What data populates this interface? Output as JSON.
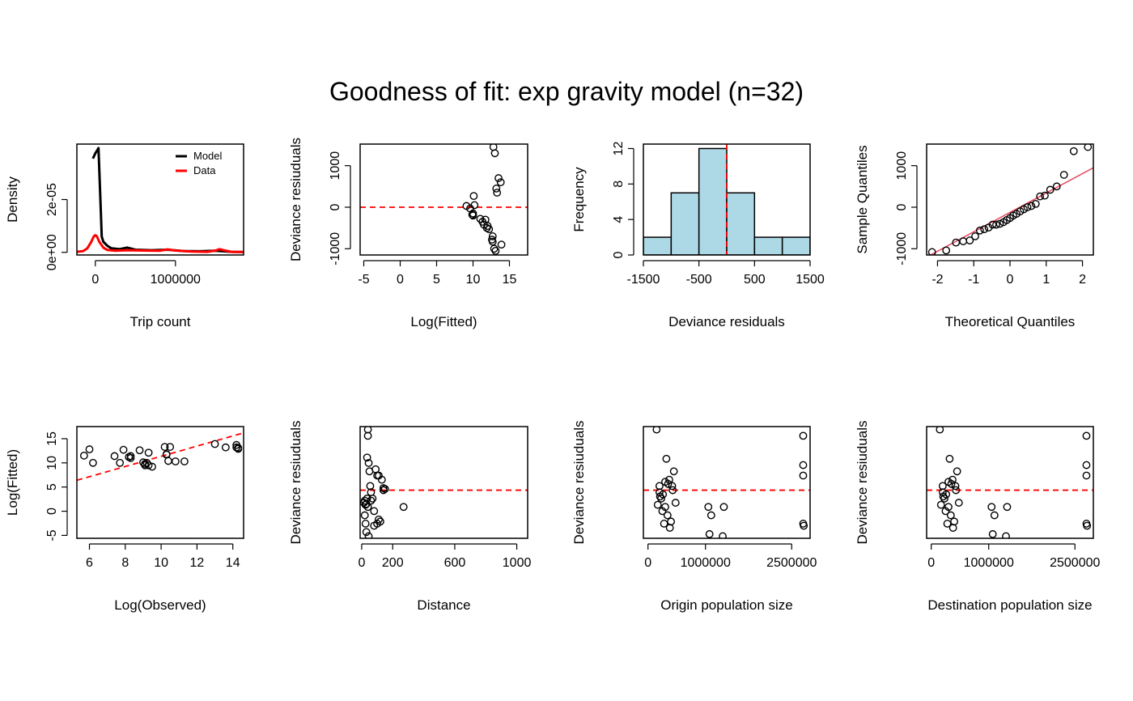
{
  "title": "Goodness of fit: exp gravity model (n=32)",
  "colors": {
    "red": "#ff0000",
    "hist_fill": "#add8e6",
    "qq_line": "#e8475a",
    "black": "#000000"
  },
  "chart_data": [
    {
      "id": "density",
      "type": "line",
      "xlabel": "Trip count",
      "ylabel": "Density",
      "xlim": [
        -230000,
        1850000
      ],
      "ylim": [
        -1e-06,
        4.1e-05
      ],
      "xticks": [
        0,
        1000000
      ],
      "xtick_labels": [
        "0",
        "1000000"
      ],
      "yticks": [
        0,
        2e-05
      ],
      "ytick_labels": [
        "0e+00",
        "2e-05"
      ],
      "legend": {
        "position": "top-right",
        "entries": [
          "Model",
          "Data"
        ]
      },
      "series": [
        {
          "name": "Model",
          "color": "#000000",
          "x": [
            -30000,
            0,
            20000,
            40000,
            60000,
            80000,
            100000,
            150000,
            200000,
            300000,
            400000,
            500000,
            700000,
            900000,
            1100000,
            1300000,
            1500000,
            1700000,
            1850000
          ],
          "y": [
            3.55e-05,
            3.75e-05,
            3.85e-05,
            3.95e-05,
            2.3e-05,
            6e-06,
            4e-06,
            2.5e-06,
            1.5e-06,
            1.2e-06,
            1.8e-06,
            1e-06,
            8e-07,
            1e-06,
            5e-07,
            4e-07,
            6e-07,
            2e-07,
            1e-07
          ]
        },
        {
          "name": "Data",
          "color": "#ff0000",
          "x": [
            -230000,
            -150000,
            -100000,
            -50000,
            -20000,
            0,
            20000,
            50000,
            100000,
            150000,
            250000,
            400000,
            600000,
            800000,
            900000,
            1000000,
            1200000,
            1400000,
            1500000,
            1550000,
            1600000,
            1700000,
            1850000
          ],
          "y": [
            2e-07,
            5e-07,
            1.5e-06,
            4e-06,
            6e-06,
            6.5e-06,
            6e-06,
            4e-06,
            1.8e-06,
            9e-07,
            6e-07,
            8e-07,
            7e-07,
            6e-07,
            1.1e-06,
            7e-07,
            3e-07,
            2e-07,
            7e-07,
            1.2e-06,
            8e-07,
            2e-07,
            1e-07
          ]
        }
      ]
    },
    {
      "id": "resid_fitted",
      "type": "scatter",
      "xlabel": "Log(Fitted)",
      "ylabel": "Deviance resiuduals",
      "xlim": [
        -5.5,
        17.5
      ],
      "ylim": [
        -1150,
        1520
      ],
      "xticks": [
        -5,
        0,
        5,
        10,
        15
      ],
      "xtick_labels": [
        "-5",
        "0",
        "5",
        "10",
        "15"
      ],
      "yticks": [
        -1000,
        0,
        1000
      ],
      "ytick_labels": [
        "-1000",
        "0",
        "1000"
      ],
      "hline": 0,
      "x": [
        9.1,
        9.6,
        9.9,
        10.0,
        10.1,
        10.2,
        11.0,
        11.3,
        11.5,
        11.7,
        11.9,
        12.0,
        12.2,
        12.6,
        12.7,
        12.8,
        13.0,
        13.2,
        13.3,
        13.5,
        13.8,
        13.9,
        12.7,
        12.9,
        13.1,
        10.0
      ],
      "y": [
        30,
        -30,
        -180,
        -150,
        270,
        50,
        -280,
        -350,
        -420,
        -300,
        -500,
        -450,
        -530,
        -780,
        -830,
        1450,
        1300,
        450,
        350,
        700,
        600,
        -900,
        -700,
        -1000,
        -1050,
        -200
      ]
    },
    {
      "id": "hist",
      "type": "bar",
      "xlabel": "Deviance residuals",
      "ylabel": "Frequency",
      "xlim": [
        -1500,
        1500
      ],
      "ylim": [
        0,
        12.5
      ],
      "xticks": [
        -1500,
        -500,
        500,
        1500
      ],
      "xtick_labels": [
        "-1500",
        "-500",
        "500",
        "1500"
      ],
      "yticks": [
        0,
        4,
        8,
        12
      ],
      "ytick_labels": [
        "0",
        "4",
        "8",
        "12"
      ],
      "vline": 0,
      "bin_edges": [
        -1500,
        -1000,
        -500,
        0,
        500,
        1000,
        1500
      ],
      "counts": [
        2,
        7,
        12,
        7,
        2,
        2
      ]
    },
    {
      "id": "qq",
      "type": "scatter",
      "xlabel": "Theoretical Quantiles",
      "ylabel": "Sample Quantiles",
      "xlim": [
        -2.3,
        2.3
      ],
      "ylim": [
        -1150,
        1520
      ],
      "xticks": [
        -2,
        -1,
        0,
        1,
        2
      ],
      "xtick_labels": [
        "-2",
        "-1",
        "0",
        "1",
        "2"
      ],
      "yticks": [
        -1000,
        0,
        1000
      ],
      "ytick_labels": [
        "-1000",
        "0",
        "1000"
      ],
      "qq_line": [
        [
          -2.3,
          -1200
        ],
        [
          2.3,
          950
        ]
      ],
      "x": [
        -2.15,
        -1.76,
        -1.49,
        -1.29,
        -1.11,
        -0.96,
        -0.83,
        -0.71,
        -0.59,
        -0.48,
        -0.38,
        -0.28,
        -0.18,
        -0.09,
        0.0,
        0.09,
        0.18,
        0.28,
        0.38,
        0.48,
        0.59,
        0.71,
        0.83,
        0.96,
        1.11,
        1.29,
        1.49,
        1.76,
        2.15
      ],
      "y": [
        -1080,
        -1040,
        -850,
        -820,
        -800,
        -700,
        -560,
        -530,
        -490,
        -420,
        -420,
        -400,
        -360,
        -310,
        -260,
        -200,
        -160,
        -100,
        -50,
        0,
        30,
        80,
        260,
        280,
        420,
        500,
        780,
        1350,
        1450
      ]
    },
    {
      "id": "fitted_observed",
      "type": "scatter",
      "xlabel": "Log(Observed)",
      "ylabel": "Log(Fitted)",
      "xlim": [
        5.3,
        14.6
      ],
      "ylim": [
        -5.6,
        17.5
      ],
      "xticks": [
        6,
        8,
        10,
        12,
        14
      ],
      "xtick_labels": [
        "6",
        "8",
        "10",
        "12",
        "14"
      ],
      "yticks": [
        -5,
        0,
        5,
        10,
        15
      ],
      "ytick_labels": [
        "-5",
        "0",
        "5",
        "10",
        "15"
      ],
      "abline": [
        [
          5.3,
          6.4
        ],
        [
          14.6,
          16.2
        ]
      ],
      "x": [
        5.7,
        6.0,
        6.2,
        7.4,
        7.7,
        7.9,
        8.2,
        8.3,
        8.8,
        9.0,
        9.1,
        9.2,
        9.3,
        9.3,
        9.5,
        10.2,
        10.3,
        10.4,
        10.5,
        10.8,
        11.3,
        13.0,
        13.6,
        14.2,
        14.3,
        14.3,
        14.2,
        9.1,
        8.3,
        10.3
      ],
      "y": [
        11.5,
        12.8,
        10.0,
        11.4,
        10.0,
        12.7,
        11.2,
        11.4,
        12.6,
        10.1,
        9.5,
        10.0,
        9.5,
        12.1,
        9.2,
        13.3,
        11.8,
        10.4,
        13.3,
        10.3,
        10.3,
        13.9,
        13.2,
        13.7,
        13.1,
        12.9,
        13.2,
        9.8,
        11.0,
        11.7
      ]
    },
    {
      "id": "resid_distance",
      "type": "scatter",
      "xlabel": "Distance",
      "ylabel": "Deviance resiuduals",
      "xlim": [
        -10,
        1070
      ],
      "ylim": [
        -1150,
        1520
      ],
      "xticks": [
        0,
        200,
        600,
        1000
      ],
      "xtick_labels": [
        "0",
        "200",
        "600",
        "1000"
      ],
      "hline": 0,
      "x": [
        15,
        20,
        25,
        30,
        30,
        35,
        40,
        40,
        45,
        50,
        55,
        60,
        70,
        80,
        90,
        100,
        110,
        120,
        130,
        140,
        150,
        270,
        35,
        40,
        45,
        60,
        80,
        100,
        110,
        140,
        25,
        20
      ],
      "y": [
        -300,
        -600,
        -800,
        -1000,
        -330,
        -200,
        1450,
        1300,
        650,
        450,
        100,
        -50,
        -200,
        -850,
        500,
        350,
        -700,
        -750,
        250,
        50,
        30,
        -400,
        780,
        -400,
        -1100,
        -250,
        -500,
        -800,
        350,
        0,
        -350,
        -250
      ]
    },
    {
      "id": "resid_origin",
      "type": "scatter",
      "xlabel": "Origin population size",
      "ylabel": "Deviance resiuduals",
      "xlim": [
        -80000,
        2820000
      ],
      "ylim": [
        -1150,
        1520
      ],
      "xticks": [
        0,
        1000000,
        2500000
      ],
      "xtick_labels": [
        "0",
        "1000000",
        "2500000"
      ],
      "hline": 0,
      "x": [
        150000,
        170000,
        200000,
        210000,
        230000,
        250000,
        280000,
        300000,
        320000,
        340000,
        370000,
        400000,
        430000,
        450000,
        480000,
        1050000,
        1070000,
        1300000,
        1100000,
        2700000,
        2700000,
        2700000,
        2700000,
        2710000,
        200000,
        260000,
        300000,
        350000,
        380000,
        420000,
        1320000
      ],
      "y": [
        1450,
        -350,
        100,
        -150,
        -200,
        -500,
        -800,
        -400,
        750,
        -600,
        250,
        -750,
        0,
        450,
        -300,
        -400,
        -1050,
        -1100,
        -600,
        1300,
        600,
        350,
        -800,
        -850,
        -50,
        -100,
        200,
        150,
        -900,
        100,
        -400
      ]
    },
    {
      "id": "resid_destination",
      "type": "scatter",
      "xlabel": "Destination population size",
      "ylabel": "Deviance resiuduals",
      "xlim": [
        -80000,
        2820000
      ],
      "ylim": [
        -1150,
        1520
      ],
      "xticks": [
        0,
        1000000,
        2500000
      ],
      "xtick_labels": [
        "0",
        "1000000",
        "2500000"
      ],
      "hline": 0,
      "x": [
        150000,
        170000,
        200000,
        210000,
        230000,
        250000,
        280000,
        300000,
        320000,
        340000,
        370000,
        400000,
        430000,
        450000,
        480000,
        1050000,
        1070000,
        1300000,
        1100000,
        2700000,
        2700000,
        2700000,
        2700000,
        2710000,
        200000,
        260000,
        300000,
        350000,
        380000,
        420000,
        1320000
      ],
      "y": [
        1450,
        -350,
        100,
        -150,
        -200,
        -500,
        -800,
        -400,
        750,
        -600,
        250,
        -750,
        0,
        450,
        -300,
        -400,
        -1050,
        -1100,
        -600,
        1300,
        600,
        350,
        -800,
        -850,
        -50,
        -100,
        200,
        150,
        -900,
        100,
        -400
      ]
    }
  ]
}
